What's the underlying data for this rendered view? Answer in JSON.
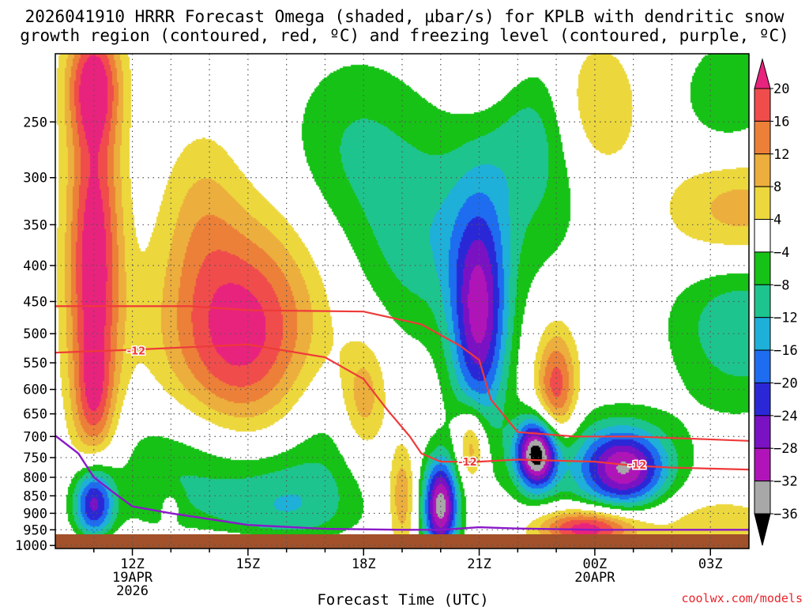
{
  "chart_data": {
    "type": "heatmap",
    "title_line1": "2026041910 HRRR Forecast Omega (shaded, µbar/s) for KPLB with dendritic snow",
    "title_line2": "growth region (contoured, red, ºC) and freezing level (contoured, purple, ºC)",
    "xlabel": "Forecast Time (UTC)",
    "credit": "coolwx.com/models",
    "x_ticks": [
      {
        "hour": 12,
        "label": "12Z",
        "sub1": "19APR",
        "sub2": "2026"
      },
      {
        "hour": 15,
        "label": "15Z",
        "sub1": "",
        "sub2": ""
      },
      {
        "hour": 18,
        "label": "18Z",
        "sub1": "",
        "sub2": ""
      },
      {
        "hour": 21,
        "label": "21Z",
        "sub1": "",
        "sub2": ""
      },
      {
        "hour": 24,
        "label": "00Z",
        "sub1": "20APR",
        "sub2": ""
      },
      {
        "hour": 27,
        "label": "03Z",
        "sub1": "",
        "sub2": ""
      }
    ],
    "x_range_hours": [
      10,
      28
    ],
    "y_ticks": [
      250,
      300,
      350,
      400,
      450,
      500,
      550,
      600,
      650,
      700,
      750,
      800,
      850,
      900,
      950,
      1000
    ],
    "y_range_hpa": [
      1010,
      200
    ],
    "log_pressure_axis": true,
    "colorbar": {
      "labels": [
        "20",
        "16",
        "12",
        "8",
        "4",
        "−4",
        "−8",
        "−12",
        "−16",
        "−20",
        "−24",
        "−28",
        "−32",
        "−36"
      ],
      "colors": [
        "#e8237d",
        "#f04c4c",
        "#ec8038",
        "#ecae3c",
        "#ecd83c",
        "#ffffff",
        "#16c216",
        "#1ec48e",
        "#1eb0d8",
        "#1e6cf0",
        "#2a28d6",
        "#7a12c4",
        "#b014b8",
        "#a8a8a8",
        "#000000"
      ]
    },
    "omega_blobs": [
      {
        "t": 11.0,
        "p": 400,
        "st": 0.5,
        "sp": 0.45,
        "amp": 24
      },
      {
        "t": 11.0,
        "p": 620,
        "st": 0.32,
        "sp": 0.12,
        "amp": 8
      },
      {
        "t": 11.0,
        "p": 220,
        "st": 0.5,
        "sp": 0.13,
        "amp": 16
      },
      {
        "t": 14.8,
        "p": 500,
        "st": 1.4,
        "sp": 0.26,
        "amp": 23
      },
      {
        "t": 13.8,
        "p": 330,
        "st": 0.7,
        "sp": 0.2,
        "amp": 6
      },
      {
        "t": 18.0,
        "p": 620,
        "st": 0.45,
        "sp": 0.14,
        "amp": 12
      },
      {
        "t": 19.0,
        "p": 850,
        "st": 0.25,
        "sp": 0.12,
        "amp": 12
      },
      {
        "t": 20.8,
        "p": 720,
        "st": 0.28,
        "sp": 0.09,
        "amp": 16
      },
      {
        "t": 23.0,
        "p": 600,
        "st": 0.38,
        "sp": 0.14,
        "amp": 19
      },
      {
        "t": 23.8,
        "p": 945,
        "st": 0.9,
        "sp": 0.045,
        "amp": 24
      },
      {
        "t": 24.0,
        "p": 240,
        "st": 0.8,
        "sp": 0.16,
        "amp": 10
      },
      {
        "t": 21.2,
        "p": 200,
        "st": 0.7,
        "sp": 0.15,
        "amp": 6
      },
      {
        "t": 27.8,
        "p": 340,
        "st": 1.4,
        "sp": 0.14,
        "amp": 12
      },
      {
        "t": 13.0,
        "p": 880,
        "st": 0.2,
        "sp": 0.04,
        "amp": 5
      },
      {
        "t": 27.0,
        "p": 920,
        "st": 1.6,
        "sp": 0.07,
        "amp": 6
      },
      {
        "t": 14.0,
        "p": 985,
        "st": 2.5,
        "sp": 0.03,
        "amp": 5
      },
      {
        "t": 11.0,
        "p": 870,
        "st": 0.38,
        "sp": 0.09,
        "amp": -28
      },
      {
        "t": 13.5,
        "p": 780,
        "st": 1.6,
        "sp": 0.17,
        "amp": -10
      },
      {
        "t": 16.0,
        "p": 880,
        "st": 1.3,
        "sp": 0.12,
        "amp": -10
      },
      {
        "t": 17.0,
        "p": 690,
        "st": 1.0,
        "sp": 0.18,
        "amp": -6
      },
      {
        "t": 20.0,
        "p": 880,
        "st": 0.32,
        "sp": 0.11,
        "amp": -34
      },
      {
        "t": 21.0,
        "p": 480,
        "st": 0.52,
        "sp": 0.25,
        "amp": -27
      },
      {
        "t": 19.5,
        "p": 380,
        "st": 1.2,
        "sp": 0.22,
        "amp": -9
      },
      {
        "t": 17.8,
        "p": 270,
        "st": 1.3,
        "sp": 0.22,
        "amp": -8
      },
      {
        "t": 22.0,
        "p": 300,
        "st": 1.4,
        "sp": 0.25,
        "amp": -8
      },
      {
        "t": 22.5,
        "p": 740,
        "st": 0.38,
        "sp": 0.08,
        "amp": -36
      },
      {
        "t": 24.8,
        "p": 780,
        "st": 0.75,
        "sp": 0.09,
        "amp": -25
      },
      {
        "t": 24.0,
        "p": 760,
        "st": 1.5,
        "sp": 0.12,
        "amp": -9
      },
      {
        "t": 27.8,
        "p": 480,
        "st": 1.3,
        "sp": 0.2,
        "amp": -12
      },
      {
        "t": 27.5,
        "p": 230,
        "st": 0.9,
        "sp": 0.14,
        "amp": -8
      },
      {
        "t": 22.5,
        "p": 250,
        "st": 0.8,
        "sp": 0.15,
        "amp": -5
      }
    ],
    "dgz_top_line": {
      "label": "-12",
      "points": [
        [
          10,
          457
        ],
        [
          13.5,
          457
        ],
        [
          15.0,
          463
        ],
        [
          18.0,
          465
        ],
        [
          19.5,
          485
        ],
        [
          20.5,
          520
        ],
        [
          21.0,
          545
        ],
        [
          21.3,
          620
        ],
        [
          22.0,
          690
        ],
        [
          23.5,
          700
        ],
        [
          25.0,
          700
        ],
        [
          28.0,
          710
        ]
      ]
    },
    "dgz_bottom_line": {
      "label": "-12",
      "points": [
        [
          10,
          532
        ],
        [
          12.0,
          527
        ],
        [
          15.0,
          518
        ],
        [
          17.0,
          540
        ],
        [
          18.0,
          580
        ],
        [
          18.6,
          640
        ],
        [
          19.2,
          700
        ],
        [
          19.5,
          740
        ],
        [
          20.0,
          760
        ],
        [
          21.0,
          760
        ],
        [
          22.0,
          755
        ],
        [
          24.0,
          760
        ],
        [
          25.0,
          770
        ],
        [
          26.0,
          775
        ],
        [
          28.0,
          780
        ]
      ]
    },
    "freezing_line": {
      "points": [
        [
          10,
          698
        ],
        [
          10.6,
          740
        ],
        [
          11.0,
          800
        ],
        [
          11.5,
          840
        ],
        [
          12.0,
          880
        ],
        [
          13.0,
          900
        ],
        [
          15.0,
          935
        ],
        [
          17.0,
          947
        ],
        [
          19.0,
          950
        ],
        [
          20.0,
          950
        ],
        [
          21.0,
          942
        ],
        [
          22.0,
          946
        ],
        [
          24.0,
          950
        ],
        [
          28.0,
          950
        ]
      ]
    },
    "label_positions": [
      {
        "t": 12.1,
        "p": 528
      },
      {
        "t": 20.7,
        "p": 760
      },
      {
        "t": 25.1,
        "p": 768
      }
    ]
  }
}
